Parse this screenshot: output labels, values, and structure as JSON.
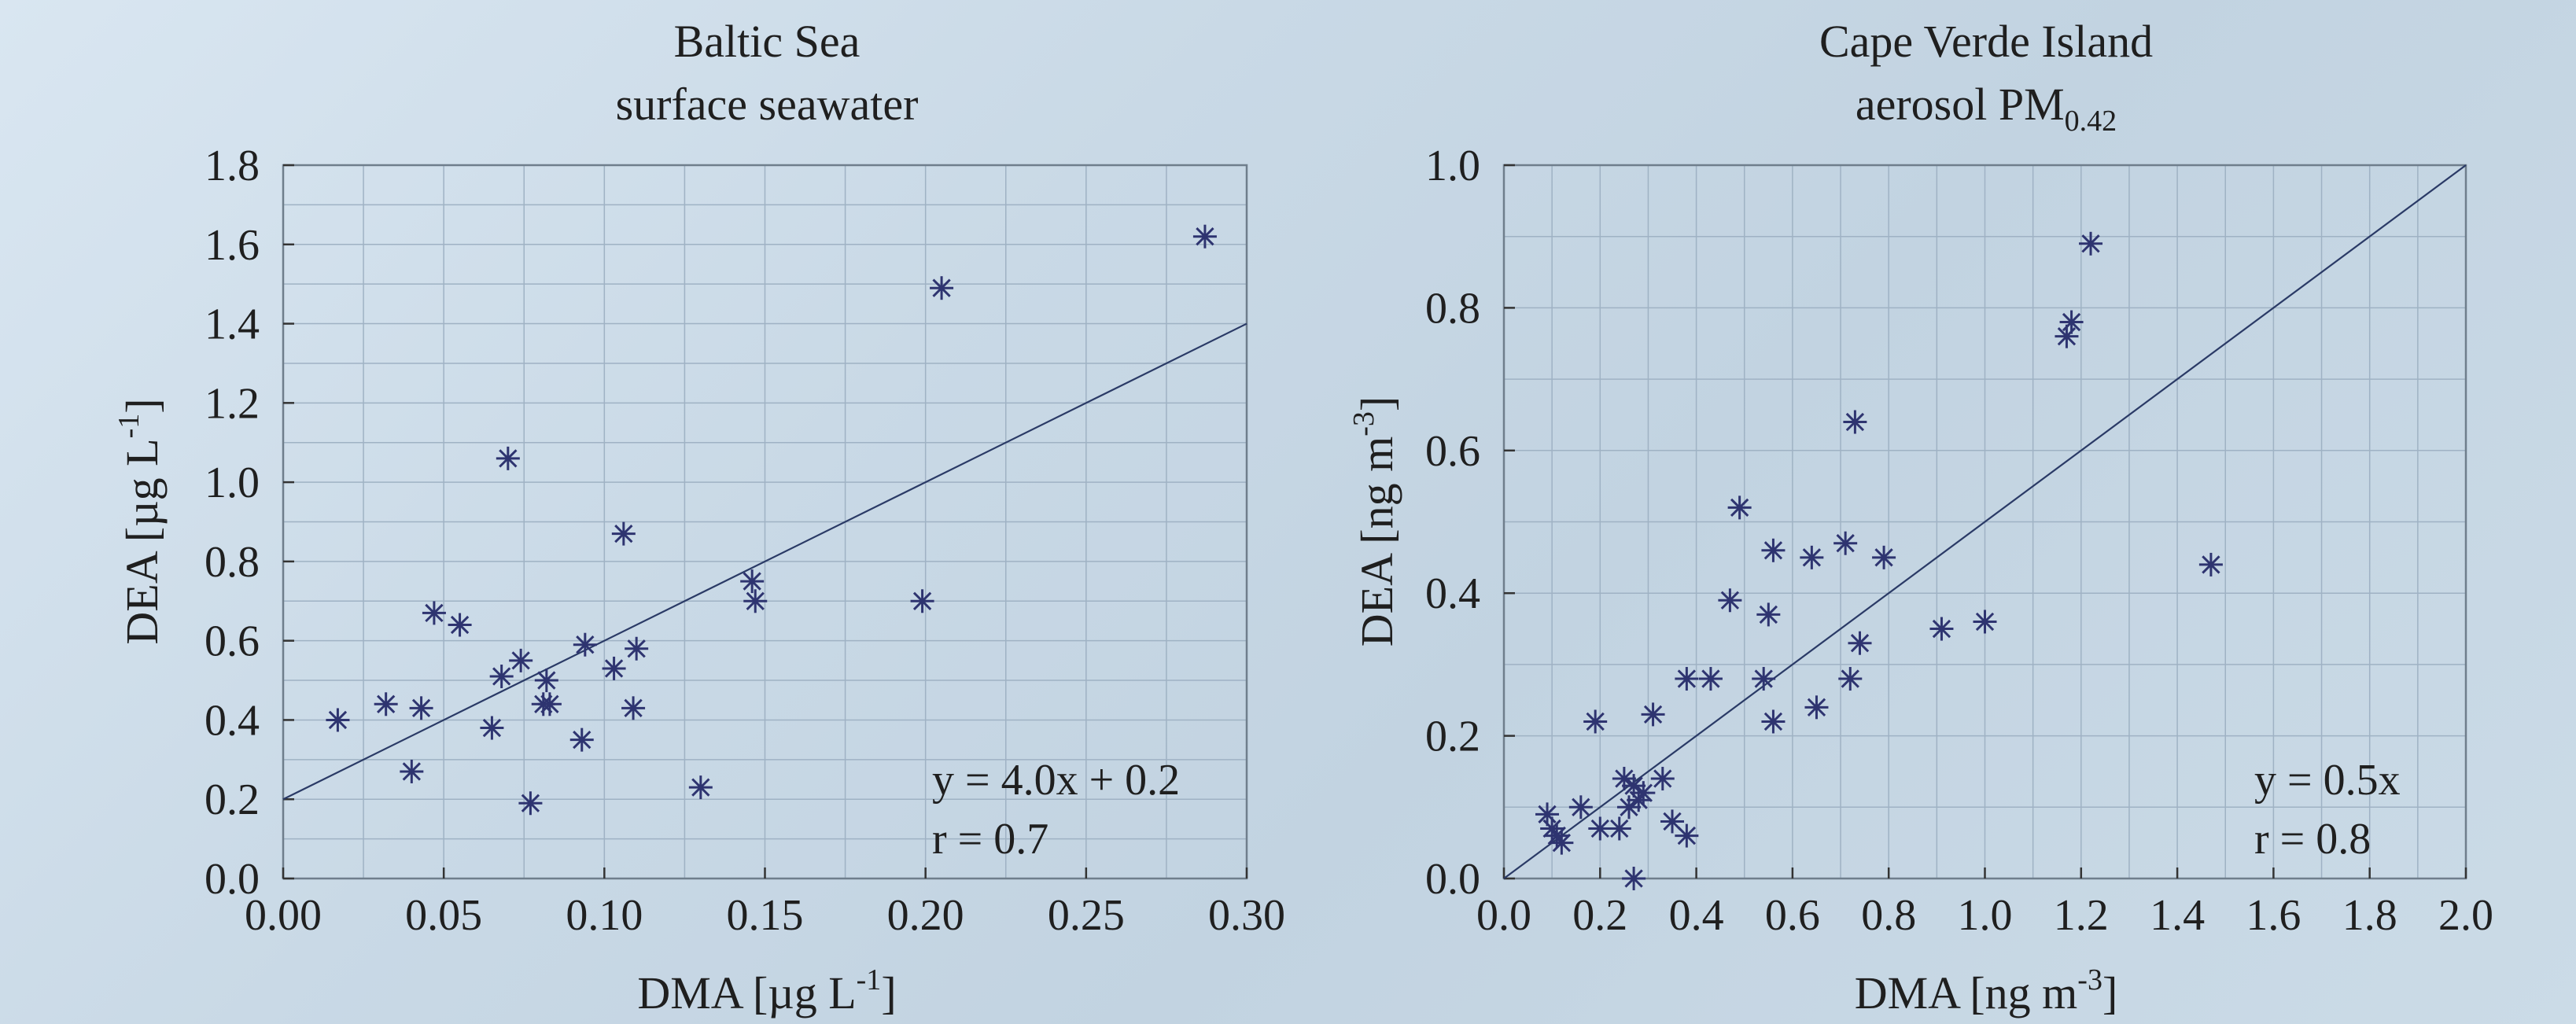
{
  "chart_data": [
    {
      "type": "scatter",
      "title": [
        "Baltic Sea",
        "surface seawater"
      ],
      "xlabel": [
        "DMA [µg L",
        "-1",
        "]"
      ],
      "ylabel": [
        "DEA [µg L",
        "-1",
        "]"
      ],
      "xlim": [
        0.0,
        0.3
      ],
      "ylim": [
        0.0,
        1.8
      ],
      "xticks": [
        "0.00",
        "0.05",
        "0.10",
        "0.15",
        "0.20",
        "0.25",
        "0.30"
      ],
      "yticks": [
        "0.0",
        "0.2",
        "0.4",
        "0.6",
        "0.8",
        "1.0",
        "1.2",
        "1.4",
        "1.6",
        "1.8"
      ],
      "grid": true,
      "fit": {
        "slope": 4.0,
        "intercept": 0.2
      },
      "annotations": [
        "y = 4.0x + 0.2",
        "r = 0.7"
      ],
      "points": [
        [
          0.017,
          0.4
        ],
        [
          0.032,
          0.44
        ],
        [
          0.04,
          0.27
        ],
        [
          0.043,
          0.43
        ],
        [
          0.047,
          0.67
        ],
        [
          0.055,
          0.64
        ],
        [
          0.065,
          0.38
        ],
        [
          0.068,
          0.51
        ],
        [
          0.07,
          1.06
        ],
        [
          0.074,
          0.55
        ],
        [
          0.077,
          0.19
        ],
        [
          0.081,
          0.44
        ],
        [
          0.082,
          0.5
        ],
        [
          0.083,
          0.44
        ],
        [
          0.093,
          0.35
        ],
        [
          0.094,
          0.59
        ],
        [
          0.103,
          0.53
        ],
        [
          0.106,
          0.87
        ],
        [
          0.109,
          0.43
        ],
        [
          0.11,
          0.58
        ],
        [
          0.13,
          0.23
        ],
        [
          0.146,
          0.75
        ],
        [
          0.147,
          0.7
        ],
        [
          0.199,
          0.7
        ],
        [
          0.205,
          1.49
        ],
        [
          0.287,
          1.62
        ]
      ]
    },
    {
      "type": "scatter",
      "title": [
        "Cape Verde Island",
        "aerosol PM",
        "0.42"
      ],
      "xlabel": [
        "DMA [ng m",
        "-3",
        "]"
      ],
      "ylabel": [
        "DEA [ng m",
        "-3",
        "]"
      ],
      "xlim": [
        0.0,
        2.0
      ],
      "ylim": [
        0.0,
        1.0
      ],
      "xticks": [
        "0.0",
        "0.2",
        "0.4",
        "0.6",
        "0.8",
        "1.0",
        "1.2",
        "1.4",
        "1.6",
        "1.8",
        "2.0"
      ],
      "yticks": [
        "0.0",
        "0.2",
        "0.4",
        "0.6",
        "0.8",
        "1.0"
      ],
      "grid": true,
      "fit": {
        "slope": 0.5,
        "intercept": 0.0
      },
      "annotations": [
        "y = 0.5x",
        "r = 0.8"
      ],
      "points": [
        [
          0.09,
          0.09
        ],
        [
          0.1,
          0.07
        ],
        [
          0.11,
          0.06
        ],
        [
          0.12,
          0.05
        ],
        [
          0.16,
          0.1
        ],
        [
          0.19,
          0.22
        ],
        [
          0.2,
          0.07
        ],
        [
          0.24,
          0.07
        ],
        [
          0.25,
          0.14
        ],
        [
          0.26,
          0.1
        ],
        [
          0.27,
          0.13
        ],
        [
          0.28,
          0.11
        ],
        [
          0.29,
          0.12
        ],
        [
          0.31,
          0.23
        ],
        [
          0.33,
          0.14
        ],
        [
          0.35,
          0.08
        ],
        [
          0.38,
          0.06
        ],
        [
          0.38,
          0.28
        ],
        [
          0.43,
          0.28
        ],
        [
          0.47,
          0.39
        ],
        [
          0.49,
          0.52
        ],
        [
          0.54,
          0.28
        ],
        [
          0.55,
          0.37
        ],
        [
          0.56,
          0.46
        ],
        [
          0.56,
          0.22
        ],
        [
          0.64,
          0.45
        ],
        [
          0.65,
          0.24
        ],
        [
          0.71,
          0.47
        ],
        [
          0.72,
          0.28
        ],
        [
          0.73,
          0.64
        ],
        [
          0.74,
          0.33
        ],
        [
          0.79,
          0.45
        ],
        [
          0.91,
          0.35
        ],
        [
          1.0,
          0.36
        ],
        [
          1.17,
          0.76
        ],
        [
          1.18,
          0.78
        ],
        [
          1.22,
          0.89
        ],
        [
          1.47,
          0.44
        ],
        [
          0.27,
          0.0
        ]
      ]
    }
  ]
}
